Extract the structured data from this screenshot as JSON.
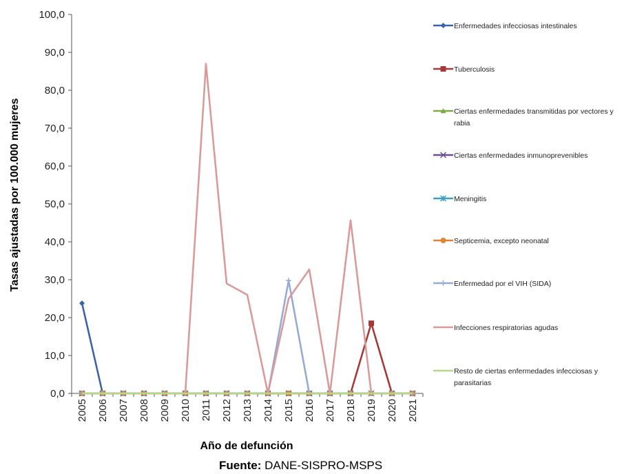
{
  "chart_data": {
    "type": "line",
    "title": "",
    "xlabel": "Año de defunción",
    "ylabel": "Tasas ajustadas por 100.000 mujeres",
    "ylim": [
      0,
      100
    ],
    "yticks": [
      "0,0",
      "10,0",
      "20,0",
      "30,0",
      "40,0",
      "50,0",
      "60,0",
      "70,0",
      "80,0",
      "90,0",
      "100,0"
    ],
    "categories": [
      "2005",
      "2006",
      "2007",
      "2008",
      "2009",
      "2010",
      "2011",
      "2012",
      "2013",
      "2014",
      "2015",
      "2016",
      "2017",
      "2018",
      "2019",
      "2020",
      "2021"
    ],
    "grid": false,
    "legend_position": "right",
    "series": [
      {
        "name": "Enfermedades infecciosas intestinales",
        "color": "#3b64a8",
        "marker": "diamond",
        "values": [
          23.8,
          0,
          0,
          0,
          0,
          0,
          0,
          0,
          0,
          0,
          0,
          0,
          0,
          0,
          0,
          0,
          0
        ]
      },
      {
        "name": "Tuberculosis",
        "color": "#a33a36",
        "marker": "square",
        "values": [
          0,
          0,
          0,
          0,
          0,
          0,
          0,
          0,
          0,
          0,
          0,
          0,
          0,
          0,
          18.5,
          0,
          0
        ]
      },
      {
        "name": "Ciertas enfermedades transmitidas por vectores y rabia",
        "color": "#7ea843",
        "marker": "triangle",
        "values": [
          0,
          0,
          0,
          0,
          0,
          0,
          0,
          0,
          0,
          0,
          0,
          0,
          0,
          0,
          0,
          0,
          0
        ]
      },
      {
        "name": "Ciertas enfermedades inmunoprevenibles",
        "color": "#6c4d96",
        "marker": "x",
        "values": [
          0,
          0,
          0,
          0,
          0,
          0,
          0,
          0,
          0,
          0,
          0,
          0,
          0,
          0,
          0,
          0,
          0
        ]
      },
      {
        "name": "Meningitis",
        "color": "#3aa0bd",
        "marker": "star",
        "values": [
          0,
          0,
          0,
          0,
          0,
          0,
          0,
          0,
          0,
          0,
          0,
          0,
          0,
          0,
          0,
          0,
          0
        ]
      },
      {
        "name": "Septicemia, excepto neonatal",
        "color": "#e0852f",
        "marker": "circle",
        "values": [
          0,
          0,
          0,
          0,
          0,
          0,
          0,
          0,
          0,
          0,
          0,
          0,
          0,
          0,
          0,
          0,
          0
        ]
      },
      {
        "name": "Enfermedad por el VIH (SIDA)",
        "color": "#95abd6",
        "marker": "plus",
        "values": [
          0,
          0,
          0,
          0,
          0,
          0,
          0,
          0,
          0,
          0,
          29.8,
          0,
          0,
          0,
          0,
          0,
          0
        ]
      },
      {
        "name": "Infecciones respiratorias agudas",
        "color": "#d99a9a",
        "marker": "none",
        "values": [
          0,
          0,
          0,
          0,
          0,
          0,
          87.0,
          29.0,
          26.0,
          0,
          25.0,
          32.7,
          0,
          45.7,
          0,
          0,
          0
        ]
      },
      {
        "name": "Resto de ciertas enfermedades infecciosas y parasitarias",
        "color": "#b6d68a",
        "marker": "none",
        "values": [
          0,
          0,
          0,
          0,
          0,
          0,
          0,
          0,
          0,
          0,
          0,
          0,
          0,
          0,
          0,
          0,
          0
        ]
      }
    ],
    "legend_lines": [
      [
        "Enfermedades infecciosas intestinales"
      ],
      [
        "Tuberculosis"
      ],
      [
        "Ciertas enfermedades transmitidas por vectores y",
        "rabia"
      ],
      [
        "Ciertas enfermedades inmunoprevenibles"
      ],
      [
        "Meningitis"
      ],
      [
        "Septicemia, excepto neonatal"
      ],
      [
        "Enfermedad por el VIH (SIDA)"
      ],
      [
        "Infecciones respiratorias agudas"
      ],
      [
        "Resto de ciertas enfermedades infecciosas y",
        "parasitarias"
      ]
    ]
  },
  "source": {
    "label": "Fuente:",
    "text": " DANE-SISPRO-MSPS"
  }
}
